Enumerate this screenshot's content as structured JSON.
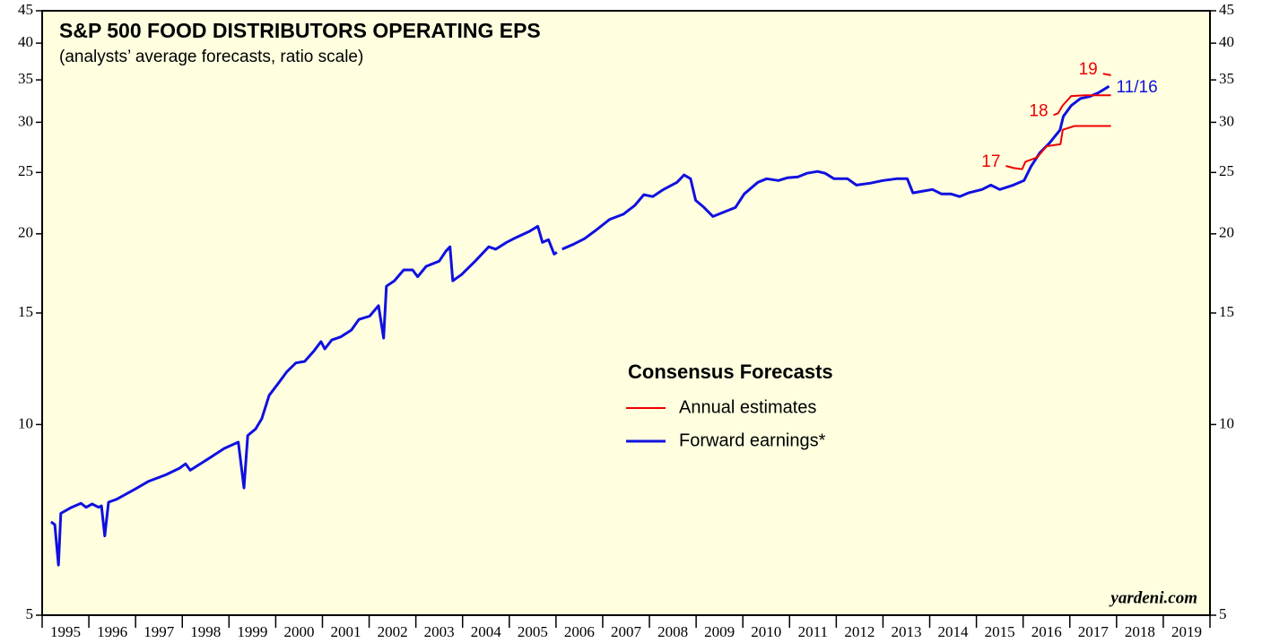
{
  "chart_data": {
    "type": "line",
    "title": "S&P 500 FOOD DISTRIBUTORS OPERATING EPS",
    "subtitle": "(analysts’ average forecasts, ratio scale)",
    "watermark": "yardeni.com",
    "log_scale": true,
    "ylim": [
      5,
      45
    ],
    "yticks": [
      5,
      10,
      15,
      20,
      25,
      30,
      35,
      40,
      45
    ],
    "xlim": [
      1995,
      2020
    ],
    "xticks": [
      1995,
      1996,
      1997,
      1998,
      1999,
      2000,
      2001,
      2002,
      2003,
      2004,
      2005,
      2006,
      2007,
      2008,
      2009,
      2010,
      2011,
      2012,
      2013,
      2014,
      2015,
      2016,
      2017,
      2018,
      2019,
      2020
    ],
    "categories": [
      "1995",
      "1996",
      "1997",
      "1998",
      "1999",
      "2000",
      "2001",
      "2002",
      "2003",
      "2004",
      "2005",
      "2006",
      "2007",
      "2008",
      "2009",
      "2010",
      "2011",
      "2012",
      "2013",
      "2014",
      "2015",
      "2016",
      "2017",
      "2018",
      "2019"
    ],
    "legend": {
      "title": "Consensus Forecasts",
      "entries": [
        {
          "name": "Annual estimates",
          "color": "#ee0000"
        },
        {
          "name": "Forward earnings*",
          "color": "#1010e0"
        }
      ]
    },
    "series": [
      {
        "label": "11/16",
        "color": "#1010e0",
        "x": [
          1995.19,
          1995.27,
          1995.35,
          1995.4,
          1995.63,
          1995.83,
          1995.94,
          1996.07,
          1996.21,
          1996.27,
          1996.34,
          1996.42,
          1996.59,
          1996.98,
          1997.27,
          1997.65,
          1997.94,
          1998.07,
          1998.17,
          1998.42,
          1998.61,
          1998.9,
          1999.2,
          1999.32,
          1999.4,
          1999.57,
          1999.7,
          1999.86,
          2000.05,
          2000.24,
          2000.43,
          2000.62,
          2000.82,
          2000.97,
          2001.05,
          2001.2,
          2001.39,
          2001.62,
          2001.78,
          2002.01,
          2002.2,
          2002.31,
          2002.37,
          2002.54,
          2002.74,
          2002.93,
          2003.04,
          2003.22,
          2003.5,
          2003.64,
          2003.73,
          2003.79,
          2003.98,
          2004.27,
          2004.56,
          2004.71,
          2004.94,
          2005.13,
          2005.42,
          2005.61,
          2005.71,
          2005.84,
          2005.96,
          2006.02,
          2006.07,
          2006.13,
          2006.38,
          2006.61,
          2006.86,
          2007.15,
          2007.44,
          2007.69,
          2007.88,
          2008.07,
          2008.3,
          2008.59,
          2008.74,
          2008.88,
          2008.99,
          2009.17,
          2009.36,
          2009.55,
          2009.84,
          2010.03,
          2010.32,
          2010.51,
          2010.76,
          2010.95,
          2011.18,
          2011.37,
          2011.6,
          2011.76,
          2011.95,
          2012.24,
          2012.43,
          2012.72,
          2013.0,
          2013.29,
          2013.52,
          2013.64,
          2013.87,
          2014.06,
          2014.25,
          2014.45,
          2014.64,
          2014.83,
          2015.12,
          2015.31,
          2015.5,
          2015.79,
          2016.02,
          2016.17,
          2016.36,
          2016.56,
          2016.79,
          2016.86,
          2017.03,
          2017.23,
          2017.42,
          2017.61,
          2017.84
        ],
        "values": [
          7.02,
          6.95,
          6.0,
          7.24,
          7.4,
          7.51,
          7.4,
          7.49,
          7.4,
          7.44,
          6.67,
          7.54,
          7.62,
          7.9,
          8.13,
          8.33,
          8.53,
          8.67,
          8.47,
          8.7,
          8.88,
          9.17,
          9.38,
          7.94,
          9.61,
          9.84,
          10.21,
          11.12,
          11.6,
          12.12,
          12.51,
          12.58,
          13.07,
          13.52,
          13.16,
          13.6,
          13.75,
          14.1,
          14.65,
          14.83,
          15.4,
          13.69,
          16.53,
          16.86,
          17.54,
          17.54,
          17.11,
          17.77,
          18.11,
          18.77,
          19.08,
          16.86,
          17.25,
          18.11,
          19.08,
          18.91,
          19.39,
          19.71,
          20.16,
          20.56,
          19.39,
          19.58,
          18.58,
          18.7,
          null,
          18.91,
          19.27,
          19.65,
          20.28,
          21.08,
          21.48,
          22.19,
          23.06,
          22.9,
          23.5,
          24.12,
          24.77,
          24.44,
          22.59,
          22.01,
          21.3,
          21.58,
          22.01,
          23.13,
          24.12,
          24.44,
          24.28,
          24.52,
          24.6,
          24.93,
          25.09,
          24.93,
          24.44,
          24.44,
          23.88,
          24.04,
          24.28,
          24.44,
          24.44,
          23.21,
          23.37,
          23.5,
          23.13,
          23.13,
          22.9,
          23.21,
          23.5,
          23.88,
          23.5,
          23.88,
          24.28,
          25.55,
          26.86,
          27.79,
          29.17,
          30.65,
          31.88,
          32.72,
          32.94,
          33.39,
          34.2
        ]
      },
      {
        "label": "17",
        "color": "#ee0000",
        "x": [
          2015.63,
          2015.8,
          2015.98,
          2016.05,
          2016.3,
          2016.5,
          2016.8,
          2016.85,
          2017.1,
          2017.88
        ],
        "values": [
          25.6,
          25.4,
          25.3,
          26.0,
          26.4,
          27.5,
          27.7,
          29.2,
          29.6,
          29.6
        ]
      },
      {
        "label": "18",
        "color": "#ee0000",
        "x": [
          2016.65,
          2016.75,
          2016.85,
          2017.03,
          2017.32,
          2017.88
        ],
        "values": [
          30.8,
          31.0,
          31.9,
          33.0,
          33.1,
          33.1
        ]
      },
      {
        "label": "19",
        "color": "#ee0000",
        "x": [
          2017.71,
          2017.88
        ],
        "values": [
          35.8,
          35.6
        ]
      }
    ]
  }
}
